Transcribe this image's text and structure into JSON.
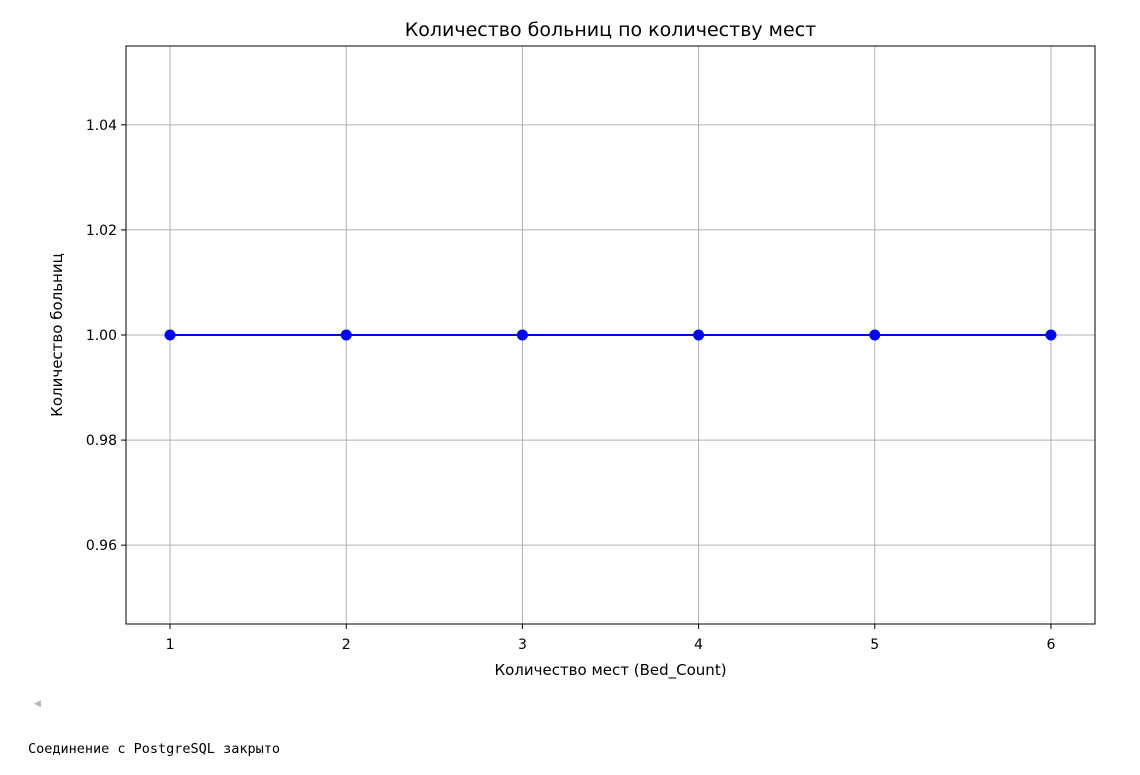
{
  "chart_data": {
    "type": "line",
    "title": "Количество больниц по количеству мест",
    "xlabel": "Количество мест (Bed_Count)",
    "ylabel": "Количество больниц",
    "x": [
      1,
      2,
      3,
      4,
      5,
      6
    ],
    "xticks": [
      "1",
      "2",
      "3",
      "4",
      "5",
      "6"
    ],
    "yticks": [
      0.96,
      0.98,
      1.0,
      1.02,
      1.04
    ],
    "ytick_labels": [
      "0.96",
      "0.98",
      "1.00",
      "1.02",
      "1.04"
    ],
    "series": [
      {
        "values": [
          1,
          1,
          1,
          1,
          1,
          1
        ],
        "color": "#0000ff",
        "marker": "circle"
      }
    ],
    "xlim": [
      0.75,
      6.25
    ],
    "ylim": [
      0.945,
      1.055
    ],
    "grid": true
  },
  "output": {
    "scroll_arrow": "◀",
    "text": "Соединение с PostgreSQL закрыто"
  }
}
